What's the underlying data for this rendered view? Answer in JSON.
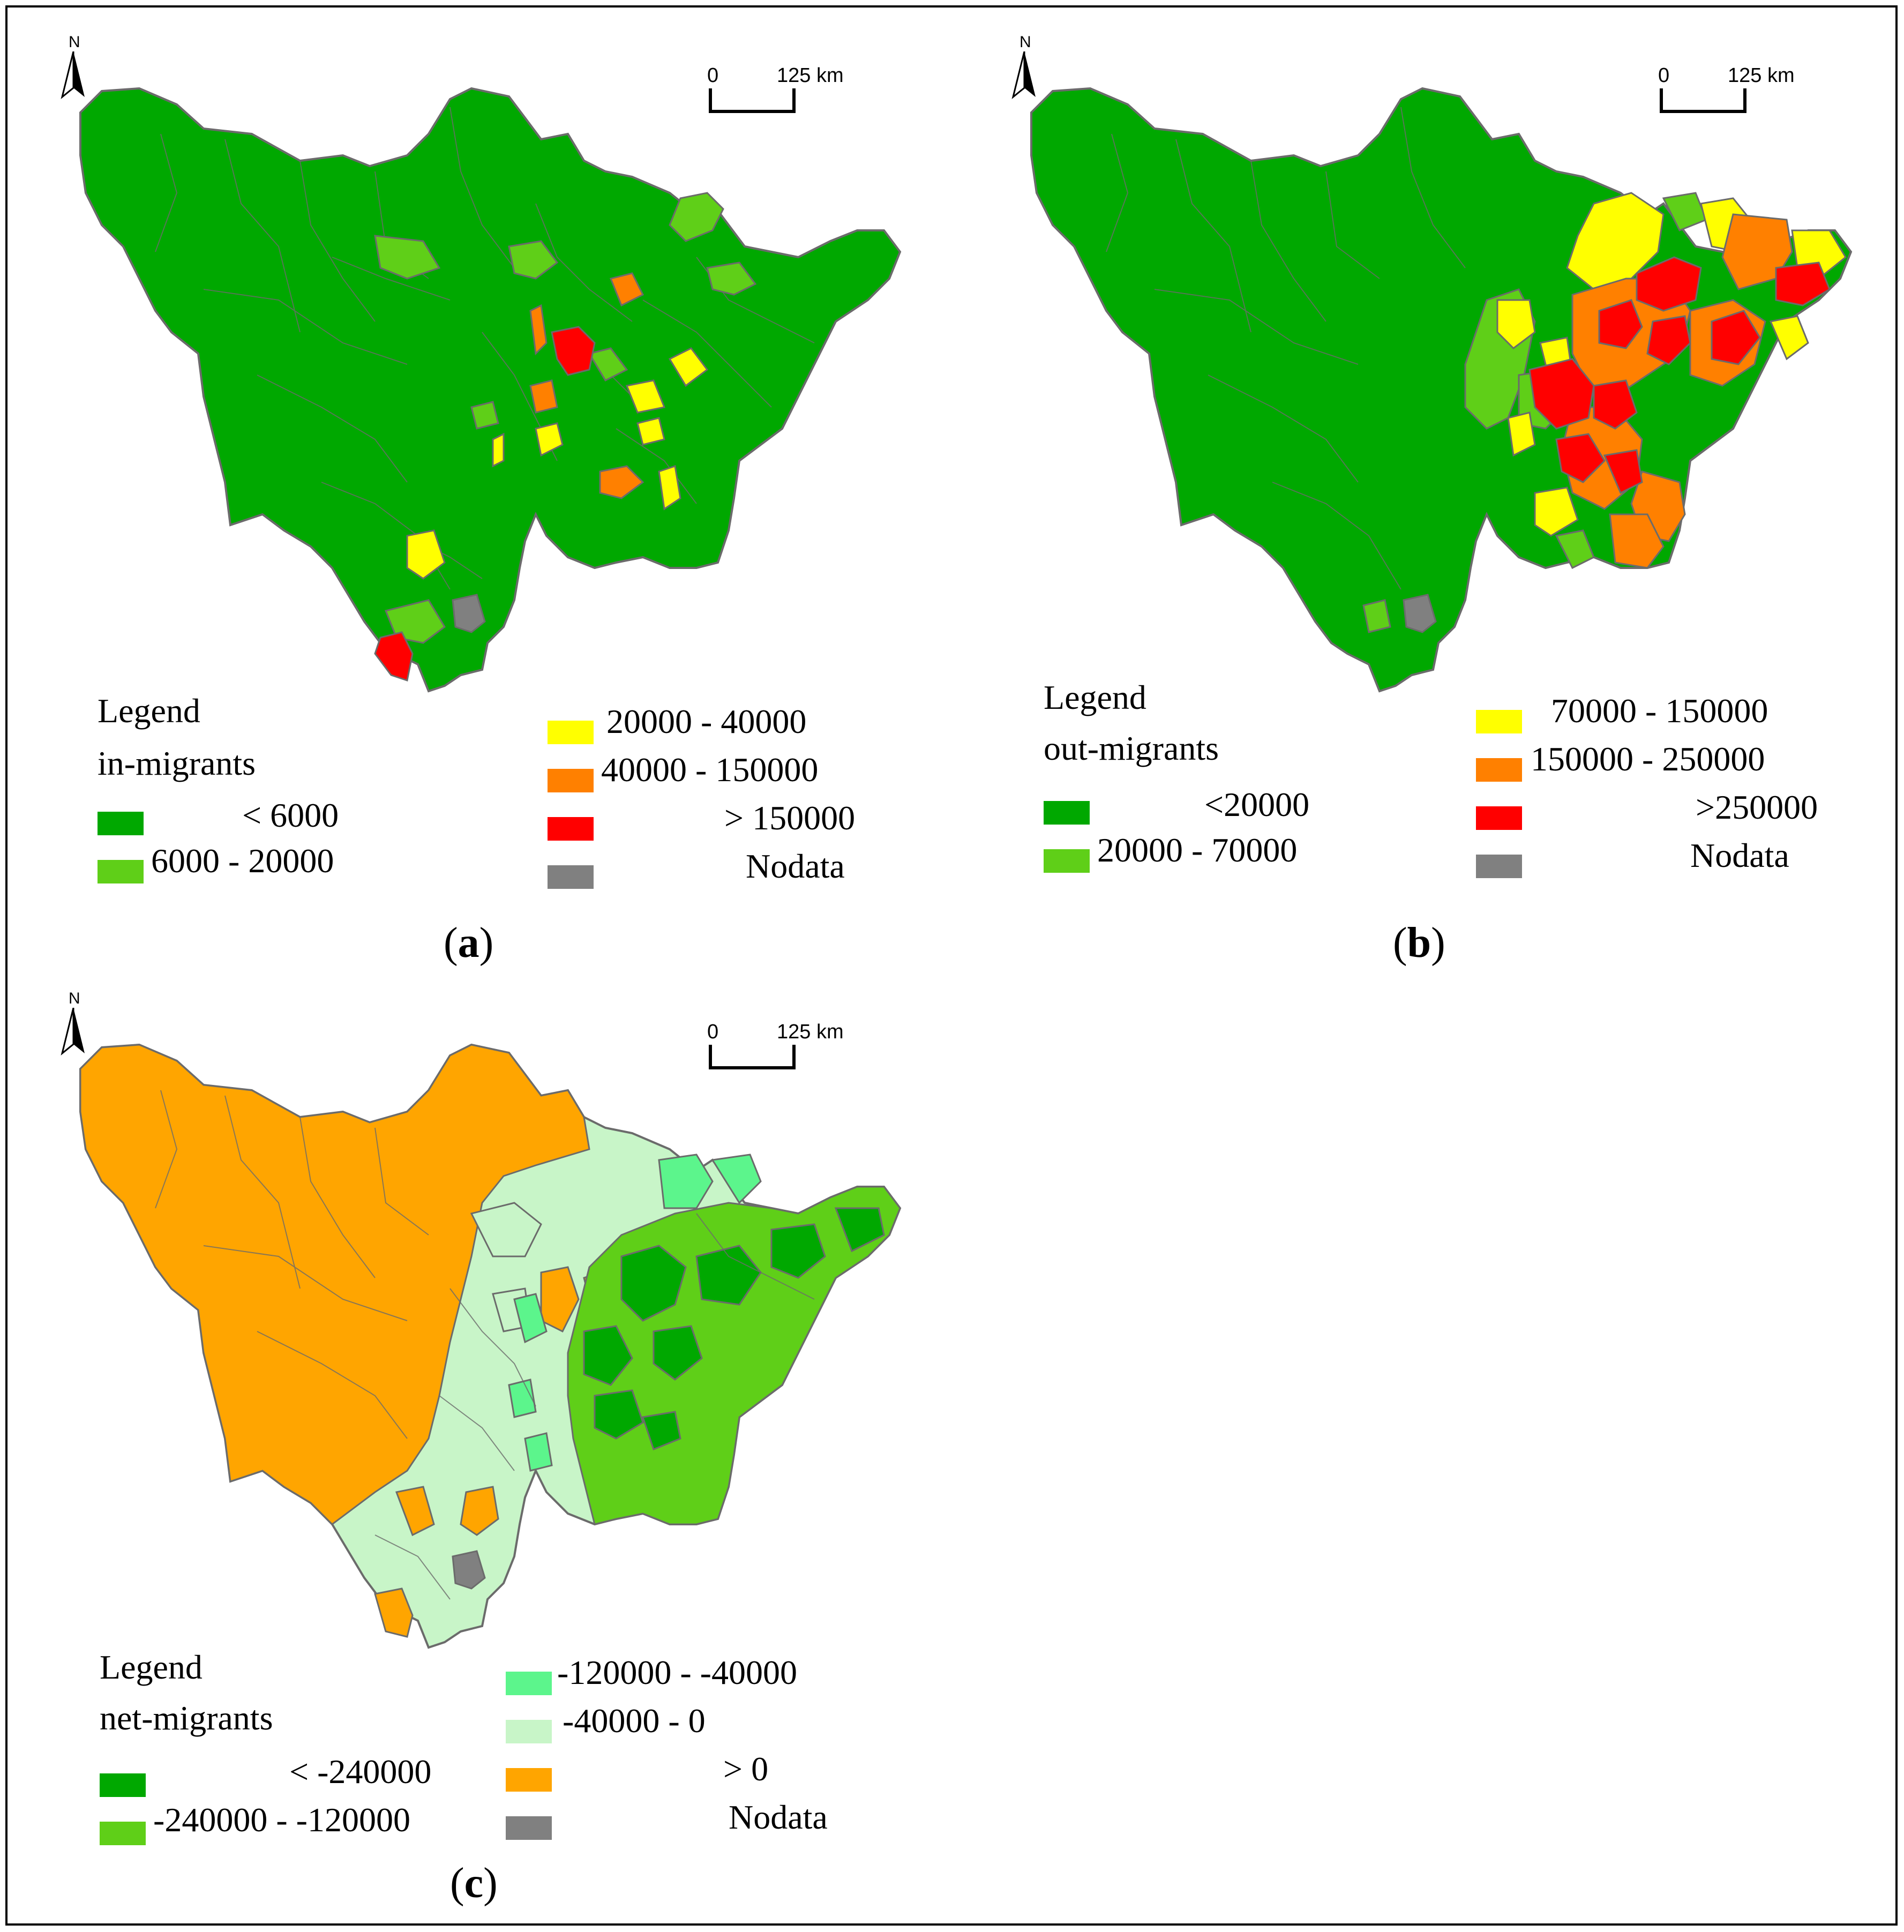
{
  "colors": {
    "dark_green": "#00a800",
    "light_green": "#5fcf18",
    "yellow": "#ffff00",
    "orange": "#ff8000",
    "red": "#ff0000",
    "gray": "#808080",
    "net_mint": "#5cf58c",
    "net_pale": "#c8f5c8",
    "net_orange": "#ffa500",
    "boundary": "#6b6b6b"
  },
  "map_common": {
    "north_label": "N",
    "scale_zero": "0",
    "scale_distance": "125 km",
    "legend_heading": "Legend"
  },
  "panels": {
    "a": {
      "caption_open": "(",
      "caption_letter": "a",
      "caption_close": ")",
      "legend_variable": "in-migrants",
      "classes": [
        {
          "label": "<  6000",
          "color": "#00a800"
        },
        {
          "label": "6000 - 20000",
          "color": "#5fcf18"
        },
        {
          "label": "20000 -  40000",
          "color": "#ffff00"
        },
        {
          "label": "40000 - 150000",
          "color": "#ff8000"
        },
        {
          "label": "> 150000",
          "color": "#ff0000"
        },
        {
          "label": "Nodata",
          "color": "#808080"
        }
      ]
    },
    "b": {
      "caption_open": "(",
      "caption_letter": "b",
      "caption_close": ")",
      "legend_variable": "out-migrants",
      "classes": [
        {
          "label": "<20000",
          "color": "#00a800"
        },
        {
          "label": "20000 - 70000",
          "color": "#5fcf18"
        },
        {
          "label": "70000 - 150000",
          "color": "#ffff00"
        },
        {
          "label": "150000 - 250000",
          "color": "#ff8000"
        },
        {
          "label": ">250000",
          "color": "#ff0000"
        },
        {
          "label": "Nodata",
          "color": "#808080"
        }
      ]
    },
    "c": {
      "caption_open": "(",
      "caption_letter": "c",
      "caption_close": ")",
      "legend_variable": "net-migrants",
      "classes": [
        {
          "label": "< -240000",
          "color": "#00a800"
        },
        {
          "label": "-240000 - -120000",
          "color": "#5fcf18"
        },
        {
          "label": "-120000 - -40000",
          "color": "#5cf58c"
        },
        {
          "label": "-40000 -          0",
          "color": "#c8f5c8"
        },
        {
          "label": ">          0",
          "color": "#ffa500"
        },
        {
          "label": "Nodata",
          "color": "#808080"
        }
      ]
    }
  }
}
